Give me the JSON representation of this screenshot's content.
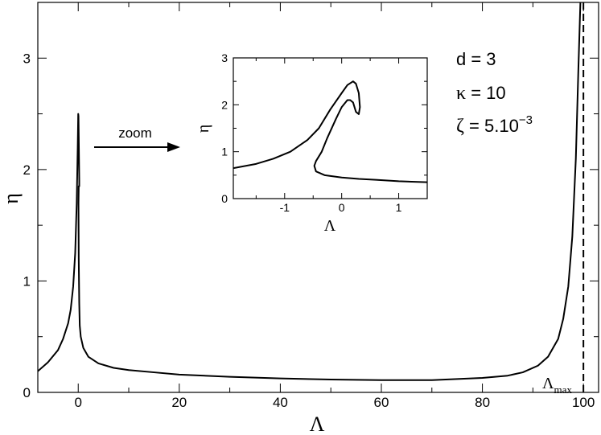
{
  "chart_data": [
    {
      "type": "line",
      "xlabel": "Λ",
      "ylabel": "η",
      "xlim": [
        -8,
        103
      ],
      "ylim": [
        0,
        3.5
      ],
      "xticks": [
        "0",
        "20",
        "40",
        "60",
        "80",
        "100"
      ],
      "yticks": [
        "0",
        "1",
        "2",
        "3"
      ],
      "series": [
        {
          "style": "solid",
          "x": [
            -8,
            -6,
            -4,
            -3,
            -2,
            -1.5,
            -1,
            -0.6,
            -0.3,
            -0.1,
            0,
            0.05,
            0.1,
            0.15,
            0.2,
            0.2,
            0.1,
            0.05,
            0.1,
            0.2,
            0.3,
            0.5,
            1,
            2,
            4,
            7,
            10,
            15,
            20,
            30,
            40,
            50,
            60,
            70,
            80,
            85,
            88,
            91,
            93,
            95,
            96,
            97,
            97.8,
            98.5,
            99,
            99.4
          ],
          "y": [
            0.19,
            0.27,
            0.38,
            0.48,
            0.62,
            0.74,
            0.95,
            1.25,
            1.7,
            2.2,
            2.5,
            2.48,
            2.3,
            2.1,
            1.9,
            1.85,
            1.85,
            1.7,
            1.2,
            0.8,
            0.6,
            0.5,
            0.4,
            0.32,
            0.26,
            0.22,
            0.2,
            0.18,
            0.16,
            0.14,
            0.125,
            0.115,
            0.11,
            0.11,
            0.13,
            0.15,
            0.18,
            0.24,
            0.32,
            0.48,
            0.66,
            0.95,
            1.4,
            2.1,
            2.9,
            3.5
          ]
        },
        {
          "style": "dashed",
          "x": [
            100,
            100
          ],
          "y": [
            0,
            3.5
          ]
        }
      ],
      "annotations": {
        "d": "d = 3",
        "kappa_sym": "κ",
        "kappa": " = 10",
        "zeta_sym": "ζ",
        "zeta": " = 5.10",
        "zeta_exp": "−3",
        "zoom": "zoom",
        "lambda_max": "Λ",
        "lambda_max_sub": "max"
      }
    },
    {
      "type": "line",
      "xlabel": "Λ",
      "ylabel": "η",
      "xlim": [
        -1.9,
        1.5
      ],
      "ylim": [
        0,
        3
      ],
      "xticks": [
        "-1",
        "0",
        "1"
      ],
      "yticks": [
        "0",
        "1",
        "2",
        "3"
      ],
      "series": [
        {
          "style": "solid",
          "x": [
            -1.9,
            -1.5,
            -1.2,
            -0.9,
            -0.6,
            -0.4,
            -0.2,
            0.0,
            0.1,
            0.2,
            0.25,
            0.3,
            0.32,
            0.3,
            0.25,
            0.2,
            0.15,
            0.1,
            0.0,
            -0.1,
            -0.25,
            -0.35,
            -0.45,
            -0.48,
            -0.45,
            -0.3,
            0,
            0.3,
            0.6,
            1.0,
            1.5
          ],
          "y": [
            0.65,
            0.74,
            0.85,
            1.0,
            1.25,
            1.5,
            1.9,
            2.25,
            2.42,
            2.5,
            2.45,
            2.25,
            1.95,
            1.8,
            1.85,
            2.05,
            2.1,
            2.1,
            1.95,
            1.7,
            1.3,
            1.0,
            0.8,
            0.7,
            0.58,
            0.5,
            0.45,
            0.42,
            0.4,
            0.37,
            0.35
          ]
        }
      ]
    }
  ]
}
